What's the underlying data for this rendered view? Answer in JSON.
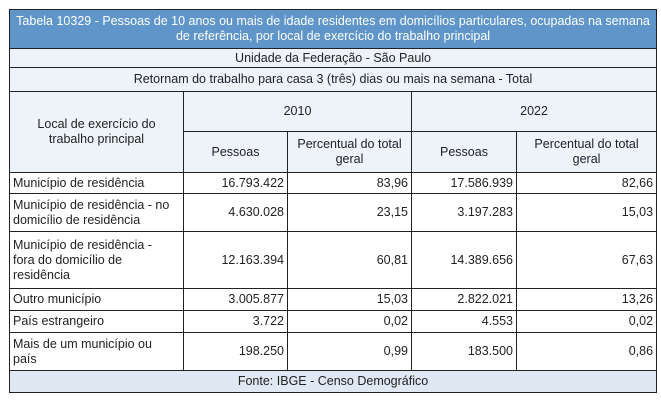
{
  "title": "Tabela 10329 - Pessoas de 10 anos ou mais de idade residentes em domicílios particulares, ocupadas na semana de referência, por local de exercício do trabalho principal",
  "unidade": "Unidade da Federação - São Paulo",
  "filtro": "Retornam do trabalho para casa 3 (três) dias ou mais na semana - Total",
  "header": {
    "row_label": "Local de exercício do trabalho principal",
    "year1": "2010",
    "year2": "2022",
    "pessoas": "Pessoas",
    "percentual": "Percentual do total geral"
  },
  "rows": [
    {
      "label": "Município de residência",
      "p2010": "16.793.422",
      "pc2010": "83,96",
      "p2022": "17.586.939",
      "pc2022": "82,66"
    },
    {
      "label": "Município de residência - no domicílio de residência",
      "p2010": "4.630.028",
      "pc2010": "23,15",
      "p2022": "3.197.283",
      "pc2022": "15,03"
    },
    {
      "label": "Município de residência - fora do domicílio de residência",
      "p2010": "12.163.394",
      "pc2010": "60,81",
      "p2022": "14.389.656",
      "pc2022": "67,63"
    },
    {
      "label": "Outro município",
      "p2010": "3.005.877",
      "pc2010": "15,03",
      "p2022": "2.822.021",
      "pc2022": "13,26"
    },
    {
      "label": "País estrangeiro",
      "p2010": "3.722",
      "pc2010": "0,02",
      "p2022": "4.553",
      "pc2022": "0,02"
    },
    {
      "label": "Mais de um município ou país",
      "p2010": "198.250",
      "pc2010": "0,99",
      "p2022": "183.500",
      "pc2022": "0,86"
    }
  ],
  "fonte": "Fonte: IBGE - Censo Demográfico"
}
